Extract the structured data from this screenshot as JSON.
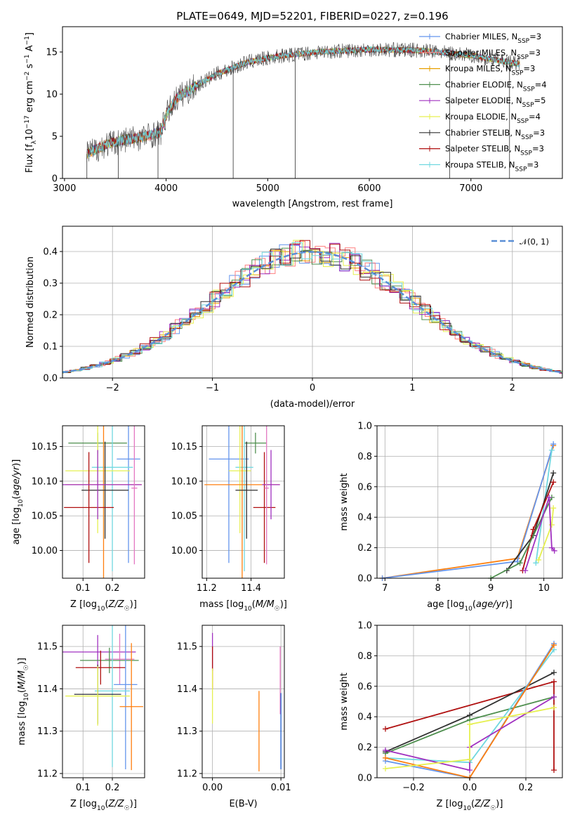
{
  "colors": {
    "chabrier_miles": "#6495ed",
    "salpeter_miles": "#ff7f7f",
    "kroupa_miles": "#e8a000",
    "chabrier_elodie": "#4f8f4f",
    "salpeter_elodie": "#a030c0",
    "kroupa_elodie": "#e6f050",
    "chabrier_stelib": "#303030",
    "salpeter_stelib": "#b01010",
    "kroupa_stelib": "#70d8e0",
    "orange": "#ff7f0e",
    "pink": "#e377c2",
    "blue": "#1f5fd0",
    "gaussian": "#5b8fd6"
  },
  "chart_data": [
    {
      "id": "spectrum",
      "type": "line",
      "title": "PLATE=0649, MJD=52201, FIBERID=0227, z=0.196",
      "xlabel": "wavelength [Angstrom, rest frame]",
      "ylabel": "Flux [f_λ10^-17 erg cm^-2 s^-1 A^-1]",
      "xlim": [
        2980,
        7900
      ],
      "ylim": [
        0,
        18
      ],
      "xticks": [
        3000,
        4000,
        5000,
        6000,
        7000
      ],
      "yticks": [
        0,
        5,
        10,
        15
      ],
      "legend_position": "right",
      "series": [
        {
          "name": "Chabrier MILES, N_SSP=3",
          "color_key": "chabrier_miles"
        },
        {
          "name": "Salpeter MILES, N_SSP=3",
          "color_key": "salpeter_miles"
        },
        {
          "name": "Kroupa MILES, N_SSP=3",
          "color_key": "kroupa_miles"
        },
        {
          "name": "Chabrier ELODIE, N_SSP=4",
          "color_key": "chabrier_elodie"
        },
        {
          "name": "Salpeter ELODIE, N_SSP=5",
          "color_key": "salpeter_elodie"
        },
        {
          "name": "Kroupa ELODIE, N_SSP=4",
          "color_key": "kroupa_elodie"
        },
        {
          "name": "Chabrier STELIB, N_SSP=3",
          "color_key": "chabrier_stelib"
        },
        {
          "name": "Salpeter STELIB, N_SSP=3",
          "color_key": "salpeter_stelib"
        },
        {
          "name": "Kroupa STELIB, N_SSP=3",
          "color_key": "kroupa_stelib"
        }
      ],
      "continuum": [
        [
          3220,
          2.9
        ],
        [
          3400,
          4.0
        ],
        [
          3600,
          4.6
        ],
        [
          3800,
          5.0
        ],
        [
          3950,
          5.5
        ],
        [
          4000,
          7.5
        ],
        [
          4100,
          9.5
        ],
        [
          4300,
          11.0
        ],
        [
          4500,
          12.4
        ],
        [
          4800,
          13.8
        ],
        [
          5100,
          14.5
        ],
        [
          5500,
          15.0
        ],
        [
          6000,
          15.3
        ],
        [
          6500,
          15.2
        ],
        [
          7000,
          14.6
        ],
        [
          7500,
          13.5
        ]
      ],
      "spikes": [
        [
          3220,
          0
        ],
        [
          3530,
          0
        ],
        [
          3920,
          0
        ],
        [
          4660,
          0
        ],
        [
          5270,
          0
        ],
        [
          6790,
          0
        ],
        [
          7380,
          0
        ]
      ]
    },
    {
      "id": "residuals",
      "type": "histogram",
      "xlabel": "(data-model)/error",
      "ylabel": "Normed distribution",
      "xlim": [
        -2.5,
        2.5
      ],
      "ylim": [
        0,
        0.48
      ],
      "xticks": [
        -2,
        -1,
        0,
        1,
        2
      ],
      "yticks": [
        0.0,
        0.1,
        0.2,
        0.3,
        0.4
      ],
      "legend": "𝒩(0, 1)",
      "legend_position": "top-right",
      "bin_width": 0.1
    },
    {
      "id": "age_vs_z",
      "type": "errorbar",
      "xlabel": "Z [log10(Z/Z☉)]",
      "ylabel": "age  [log10(age/yr)]",
      "xlim": [
        0.03,
        0.31
      ],
      "ylim": [
        9.96,
        10.18
      ],
      "xticks": [
        0.1,
        0.2
      ],
      "yticks": [
        10.0,
        10.05,
        10.1,
        10.15
      ],
      "points": [
        {
          "color_key": "chabrier_elodie",
          "x": 0.15,
          "xerr": 0.1,
          "y": 10.155,
          "yerr": 0.015
        },
        {
          "color_key": "chabrier_miles",
          "x": 0.255,
          "xerr": 0.04,
          "y": 10.132,
          "yerr": 0.15
        },
        {
          "color_key": "kroupa_stelib",
          "x": 0.2,
          "xerr": 0.07,
          "y": 10.12,
          "yerr": 0.15
        },
        {
          "color_key": "kroupa_elodie",
          "x": 0.15,
          "xerr": 0.11,
          "y": 10.115,
          "yerr": 0.09
        },
        {
          "color_key": "orange",
          "x": 0.17,
          "xerr": 0.13,
          "y": 10.095,
          "yerr": 0.15
        },
        {
          "color_key": "chabrier_stelib",
          "x": 0.175,
          "xerr": 0.08,
          "y": 10.087,
          "yerr": 0.07
        },
        {
          "color_key": "salpeter_stelib",
          "x": 0.12,
          "xerr": 0.085,
          "y": 10.062,
          "yerr": 0.08
        },
        {
          "color_key": "salpeter_elodie",
          "x": 0.15,
          "xerr": 0.15,
          "y": 10.095,
          "yerr": 0.05
        },
        {
          "color_key": "pink",
          "x": 0.275,
          "xerr": 0.01,
          "y": 10.09,
          "yerr": 0.11
        }
      ]
    },
    {
      "id": "age_vs_mass",
      "type": "errorbar",
      "xlabel": "mass [log10(M/M☉)]",
      "ylabel": "",
      "xlim": [
        11.18,
        11.55
      ],
      "ylim": [
        9.96,
        10.18
      ],
      "xticks": [
        11.2,
        11.4
      ],
      "yticks": [
        10.0,
        10.05,
        10.1,
        10.15
      ],
      "points": [
        {
          "color_key": "chabrier_elodie",
          "x": 11.42,
          "xerr": 0.05,
          "y": 10.155,
          "yerr": 0.015
        },
        {
          "color_key": "chabrier_miles",
          "x": 11.3,
          "xerr": 0.09,
          "y": 10.132,
          "yerr": 0.15
        },
        {
          "color_key": "kroupa_stelib",
          "x": 11.37,
          "xerr": 0.04,
          "y": 10.12,
          "yerr": 0.15
        },
        {
          "color_key": "kroupa_elodie",
          "x": 11.35,
          "xerr": 0.05,
          "y": 10.115,
          "yerr": 0.09
        },
        {
          "color_key": "orange",
          "x": 11.36,
          "xerr": 0.17,
          "y": 10.095,
          "yerr": 0.15
        },
        {
          "color_key": "chabrier_stelib",
          "x": 11.38,
          "xerr": 0.05,
          "y": 10.087,
          "yerr": 0.07
        },
        {
          "color_key": "salpeter_stelib",
          "x": 11.46,
          "xerr": 0.05,
          "y": 10.062,
          "yerr": 0.08
        },
        {
          "color_key": "salpeter_elodie",
          "x": 11.49,
          "xerr": 0.04,
          "y": 10.095,
          "yerr": 0.05
        },
        {
          "color_key": "pink",
          "x": 11.47,
          "xerr": 0.01,
          "y": 10.09,
          "yerr": 0.11
        }
      ]
    },
    {
      "id": "weight_vs_age",
      "type": "line",
      "xlabel": "age  [log10(age/yr)]",
      "ylabel": "mass weight",
      "xlim": [
        6.85,
        10.35
      ],
      "ylim": [
        0,
        1.0
      ],
      "xticks": [
        7,
        8,
        9,
        10
      ],
      "yticks": [
        0.0,
        0.2,
        0.4,
        0.6,
        0.8,
        1.0
      ],
      "series": [
        {
          "color_key": "orange",
          "x": [
            6.95,
            9.5,
            10.18
          ],
          "y": [
            0.0,
            0.13,
            0.87
          ]
        },
        {
          "color_key": "chabrier_miles",
          "x": 6.95,
          "x_all": [
            6.95,
            9.5,
            10.18
          ],
          "y": [
            0.0,
            0.11,
            0.88
          ]
        },
        {
          "color_key": "kroupa_stelib",
          "x_all": [
            9.85,
            10.15
          ],
          "y": [
            0.1,
            0.84
          ]
        },
        {
          "color_key": "chabrier_stelib",
          "x_all": [
            9.3,
            9.8,
            10.18
          ],
          "y": [
            0.05,
            0.28,
            0.69
          ]
        },
        {
          "color_key": "salpeter_stelib",
          "x_all": [
            9.6,
            9.8,
            10.18
          ],
          "y": [
            0.05,
            0.32,
            0.63
          ]
        },
        {
          "color_key": "chabrier_elodie",
          "x_all": [
            9.0,
            9.55,
            10.15
          ],
          "y": [
            0.0,
            0.1,
            0.53
          ]
        },
        {
          "color_key": "kroupa_elodie",
          "x_all": [
            9.9,
            10.15,
            10.18
          ],
          "y": [
            0.12,
            0.35,
            0.46
          ]
        },
        {
          "color_key": "salpeter_elodie",
          "x_all": [
            9.65,
            10.1,
            10.15,
            10.2
          ],
          "y": [
            0.05,
            0.53,
            0.2,
            0.18
          ]
        }
      ]
    },
    {
      "id": "mass_vs_z",
      "type": "errorbar",
      "xlabel": "Z [log10(Z/Z☉)]",
      "ylabel": "mass [log10(M/M☉)]",
      "xlim": [
        0.03,
        0.31
      ],
      "ylim": [
        11.19,
        11.55
      ],
      "xticks": [
        0.1,
        0.2
      ],
      "yticks": [
        11.2,
        11.3,
        11.4,
        11.5
      ],
      "points": [
        {
          "color_key": "salpeter_elodie",
          "x": 0.15,
          "xerr": 0.13,
          "y": 11.487,
          "yerr": 0.04
        },
        {
          "color_key": "pink",
          "x": 0.225,
          "xerr": 0.05,
          "y": 11.47,
          "yerr": 0.06
        },
        {
          "color_key": "chabrier_elodie",
          "x": 0.19,
          "xerr": 0.1,
          "y": 11.467,
          "yerr": 0.03
        },
        {
          "color_key": "salpeter_stelib",
          "x": 0.16,
          "xerr": 0.085,
          "y": 11.45,
          "yerr": 0.04
        },
        {
          "color_key": "chabrier_miles",
          "x": 0.245,
          "xerr": 0.04,
          "y": 11.41,
          "yerr": 0.2
        },
        {
          "color_key": "kroupa_stelib",
          "x": 0.2,
          "xerr": 0.06,
          "y": 11.395,
          "yerr": 0.18
        },
        {
          "color_key": "chabrier_stelib",
          "x": 0.15,
          "xerr": 0.08,
          "y": 11.387,
          "yerr": 0.07
        },
        {
          "color_key": "kroupa_elodie",
          "x": 0.15,
          "xerr": 0.11,
          "y": 11.383,
          "yerr": 0.07
        },
        {
          "color_key": "orange",
          "x": 0.265,
          "xerr": 0.04,
          "y": 11.358,
          "yerr": 0.15
        }
      ]
    },
    {
      "id": "mass_vs_ebv",
      "type": "errorbar",
      "xlabel": "E(B-V)",
      "ylabel": "",
      "xlim": [
        -0.0015,
        0.0105
      ],
      "ylim": [
        11.19,
        11.55
      ],
      "xticks": [
        0.0,
        0.01
      ],
      "xtick_labels": [
        "0.00",
        "0.01"
      ],
      "yticks": [
        11.2,
        11.3,
        11.4,
        11.5
      ],
      "points": [
        {
          "color_key": "salpeter_elodie",
          "x": 0.0,
          "y": 11.487,
          "yerr": 0.045
        },
        {
          "color_key": "salpeter_stelib",
          "x": 0.0,
          "y": 11.45,
          "yerr": 0.05
        },
        {
          "color_key": "kroupa_elodie",
          "x": 0.0,
          "y": 11.383,
          "yerr": 0.065
        },
        {
          "color_key": "orange",
          "x": 0.0068,
          "y": 11.3,
          "yerr": 0.095
        },
        {
          "color_key": "pink",
          "x": 0.0099,
          "y": 11.42,
          "yerr": 0.08
        },
        {
          "color_key": "blue",
          "x": 0.01,
          "y": 11.3,
          "yerr": 0.09
        }
      ]
    },
    {
      "id": "weight_vs_z",
      "type": "line",
      "xlabel": "Z [log10(Z/Z☉)]",
      "ylabel": "mass weight",
      "xlim": [
        -0.33,
        0.33
      ],
      "ylim": [
        0,
        1.0
      ],
      "xticks": [
        -0.2,
        0.0,
        0.2
      ],
      "yticks": [
        0.0,
        0.2,
        0.4,
        0.6,
        0.8,
        1.0
      ],
      "series": [
        {
          "color_key": "salpeter_stelib",
          "x": [
            -0.3,
            0.3,
            0.3
          ],
          "y": [
            0.32,
            0.63,
            0.05
          ]
        },
        {
          "color_key": "chabrier_stelib",
          "x": [
            -0.3,
            0.0,
            0.3
          ],
          "y": [
            0.17,
            0.41,
            0.69
          ]
        },
        {
          "color_key": "chabrier_elodie",
          "x": [
            -0.3,
            0.0,
            0.3
          ],
          "y": [
            0.16,
            0.38,
            0.53
          ]
        },
        {
          "color_key": "kroupa_stelib",
          "x": [
            -0.3,
            0.0,
            0.3
          ],
          "y": [
            0.13,
            0.1,
            0.84
          ]
        },
        {
          "color_key": "chabrier_miles",
          "x": [
            -0.3,
            0.0,
            0.3
          ],
          "y": [
            0.11,
            0.0,
            0.88
          ]
        },
        {
          "color_key": "orange",
          "x": [
            -0.3,
            0.0,
            0.3
          ],
          "y": [
            0.13,
            0.0,
            0.87
          ]
        },
        {
          "color_key": "salpeter_elodie",
          "x": [
            -0.3,
            0.0,
            0.0,
            0.3
          ],
          "y": [
            0.18,
            0.05,
            0.2,
            0.53
          ]
        },
        {
          "color_key": "kroupa_elodie",
          "x": [
            -0.3,
            0.0,
            0.0,
            0.3
          ],
          "y": [
            0.06,
            0.12,
            0.35,
            0.46
          ]
        }
      ]
    }
  ]
}
